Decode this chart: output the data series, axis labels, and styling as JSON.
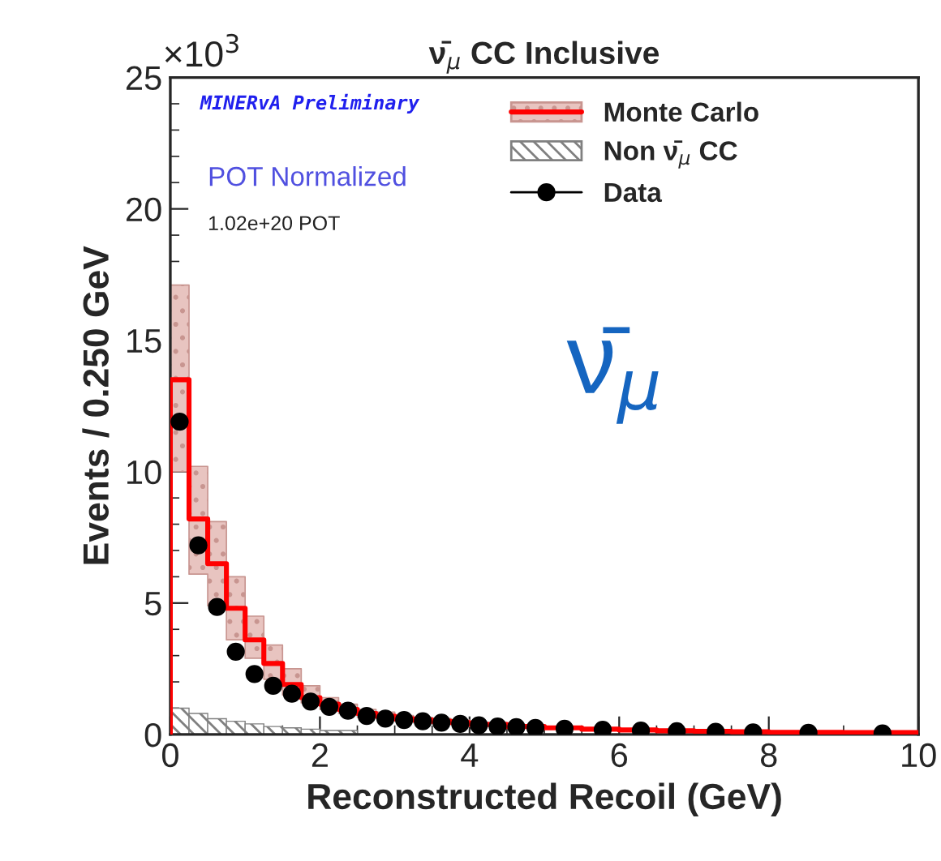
{
  "chart_data": {
    "type": "histogram",
    "title": "ν̄$_{μ}$ CC Inclusive",
    "xlabel": "Reconstructed Recoil (GeV)",
    "ylabel": "Events / 0.250 GeV",
    "annotations": [
      "×10$^{3}$",
      "MINERvA Preliminary",
      "POT Normalized",
      "1.02e+20 POT",
      "ν̄$_{μ}$"
    ],
    "xlim": [
      0,
      10
    ],
    "ylim": [
      0,
      25
    ],
    "xticks": [
      0,
      2,
      4,
      6,
      8,
      10
    ],
    "yticks": [
      0,
      5,
      10,
      15,
      20,
      25
    ],
    "legend": "top right",
    "series": [
      {
        "name": "Monte Carlo",
        "type": "step",
        "color": "#ff0000",
        "x": [
          0,
          0,
          0.25,
          0.5,
          0.75,
          1.0,
          1.25,
          1.5,
          1.75,
          2.0,
          2.25,
          2.5,
          2.75,
          3.0,
          3.25,
          3.5,
          3.75,
          4.0,
          4.5,
          5.0,
          5.5,
          6.0,
          6.5,
          7.0,
          7.5,
          8.0,
          9.0,
          10.0
        ],
        "values": [
          0,
          13.5,
          8.2,
          6.5,
          4.8,
          3.6,
          2.7,
          1.9,
          1.4,
          1.15,
          0.95,
          0.8,
          0.7,
          0.6,
          0.55,
          0.5,
          0.45,
          0.38,
          0.3,
          0.25,
          0.2,
          0.17,
          0.14,
          0.12,
          0.1,
          0.08,
          0.07,
          0.07
        ],
        "lower": [
          0,
          10.0,
          6.1,
          4.9,
          3.6,
          2.9,
          2.1,
          1.5,
          1.2,
          0.95,
          0.8,
          0.65,
          0.6,
          0.5,
          0.45,
          0.4,
          0.38,
          0.3,
          0.25,
          0.2,
          0.15,
          0.13,
          0.1,
          0.09,
          0.07,
          0.06,
          0.05,
          0.05
        ],
        "upper": [
          0,
          17.1,
          10.2,
          8.1,
          6.0,
          4.5,
          3.4,
          2.5,
          1.85,
          1.4,
          1.15,
          0.95,
          0.85,
          0.72,
          0.65,
          0.6,
          0.55,
          0.45,
          0.36,
          0.3,
          0.25,
          0.21,
          0.18,
          0.15,
          0.13,
          0.1,
          0.09,
          0.09
        ]
      },
      {
        "name": "Non ν̄$_{μ}$ CC",
        "color": "#808080",
        "bins": [
          0,
          0.25,
          0.5,
          0.75,
          1.0,
          1.25,
          1.5,
          1.75,
          2.0,
          2.5
        ],
        "values": [
          1.0,
          0.8,
          0.6,
          0.5,
          0.4,
          0.3,
          0.25,
          0.2,
          0.15
        ]
      },
      {
        "name": "Data",
        "type": "scatter",
        "color": "#000000",
        "marker": "circle",
        "x": [
          0.125,
          0.375,
          0.625,
          0.875,
          1.125,
          1.375,
          1.625,
          1.875,
          2.125,
          2.375,
          2.625,
          2.875,
          3.125,
          3.375,
          3.625,
          3.875,
          4.125,
          4.375,
          4.625,
          4.88,
          5.27,
          5.78,
          6.29,
          6.77,
          7.29,
          7.79,
          8.53,
          9.52
        ],
        "values": [
          11.9,
          7.2,
          4.85,
          3.15,
          2.3,
          1.85,
          1.55,
          1.25,
          1.05,
          0.9,
          0.7,
          0.6,
          0.55,
          0.5,
          0.45,
          0.4,
          0.35,
          0.3,
          0.28,
          0.25,
          0.22,
          0.18,
          0.15,
          0.12,
          0.1,
          0.08,
          0.06,
          0.04
        ]
      }
    ]
  }
}
